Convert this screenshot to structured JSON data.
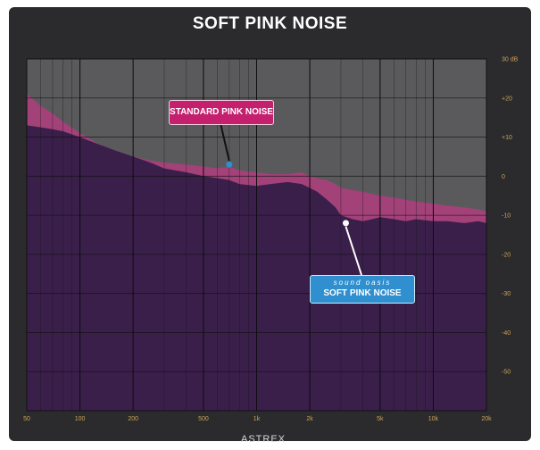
{
  "chart_data": {
    "type": "area",
    "title": "SOFT PINK NOISE",
    "x_scale": "log",
    "x_ticks": [
      {
        "value": 50,
        "label": "50"
      },
      {
        "value": 100,
        "label": "100"
      },
      {
        "value": 200,
        "label": "200"
      },
      {
        "value": 500,
        "label": "500"
      },
      {
        "value": 1000,
        "label": "1k"
      },
      {
        "value": 2000,
        "label": "2k"
      },
      {
        "value": 5000,
        "label": "5k"
      },
      {
        "value": 10000,
        "label": "10k"
      },
      {
        "value": 20000,
        "label": "20k"
      }
    ],
    "xlim": [
      50,
      20000
    ],
    "ylim": [
      -60,
      30
    ],
    "y_ticks": [
      {
        "value": 30,
        "label": "30 dB"
      },
      {
        "value": 20,
        "label": "+20"
      },
      {
        "value": 10,
        "label": "+10"
      },
      {
        "value": 0,
        "label": "0"
      },
      {
        "value": -10,
        "label": "-10"
      },
      {
        "value": -20,
        "label": "-20"
      },
      {
        "value": -30,
        "label": "-30"
      },
      {
        "value": -40,
        "label": "-40"
      },
      {
        "value": -50,
        "label": "-50"
      }
    ],
    "grid": true,
    "series": [
      {
        "name": "STANDARD PINK NOISE",
        "color": "#a8407a",
        "x": [
          50,
          60,
          70,
          80,
          100,
          130,
          160,
          200,
          250,
          300,
          400,
          500,
          600,
          700,
          800,
          1000,
          1200,
          1500,
          1800,
          2000,
          2200,
          2500,
          2800,
          3000,
          3500,
          4000,
          4500,
          5000,
          6000,
          7000,
          8000,
          10000,
          12000,
          15000,
          18000,
          20000
        ],
        "y": [
          21,
          18,
          16,
          14,
          11,
          8,
          6.5,
          5,
          4,
          3.5,
          3,
          2.5,
          2,
          2.5,
          1.5,
          1,
          0.5,
          0.5,
          1,
          0,
          -0.5,
          -1,
          -2,
          -3,
          -3.5,
          -4,
          -4.5,
          -5,
          -5.5,
          -6,
          -6.5,
          -7,
          -7.5,
          -8,
          -8.5,
          -9
        ]
      },
      {
        "name": "SOFT PINK NOISE",
        "color": "#3a1f4a",
        "x": [
          50,
          60,
          70,
          80,
          100,
          130,
          160,
          200,
          250,
          300,
          400,
          500,
          600,
          700,
          800,
          1000,
          1200,
          1500,
          1800,
          2000,
          2200,
          2500,
          2800,
          3000,
          3500,
          4000,
          4500,
          5000,
          6000,
          7000,
          8000,
          10000,
          12000,
          15000,
          18000,
          20000
        ],
        "y": [
          13,
          12.5,
          12,
          11.5,
          10,
          8,
          6.5,
          5,
          3.5,
          2,
          1,
          0,
          -0.5,
          -1,
          -2,
          -2.5,
          -2,
          -1.5,
          -2,
          -3,
          -4,
          -6,
          -8,
          -10,
          -11,
          -11.5,
          -11,
          -10.5,
          -11,
          -11.5,
          -11,
          -11.5,
          -11.5,
          -12,
          -11.5,
          -12
        ]
      }
    ],
    "annotations": [
      {
        "label": "STANDARD PINK NOISE",
        "x": 700,
        "y": 3
      },
      {
        "brand": "sound oasis",
        "label": "SOFT PINK NOISE",
        "x": 3200,
        "y": -12
      }
    ]
  },
  "watermark": "ASTREX"
}
